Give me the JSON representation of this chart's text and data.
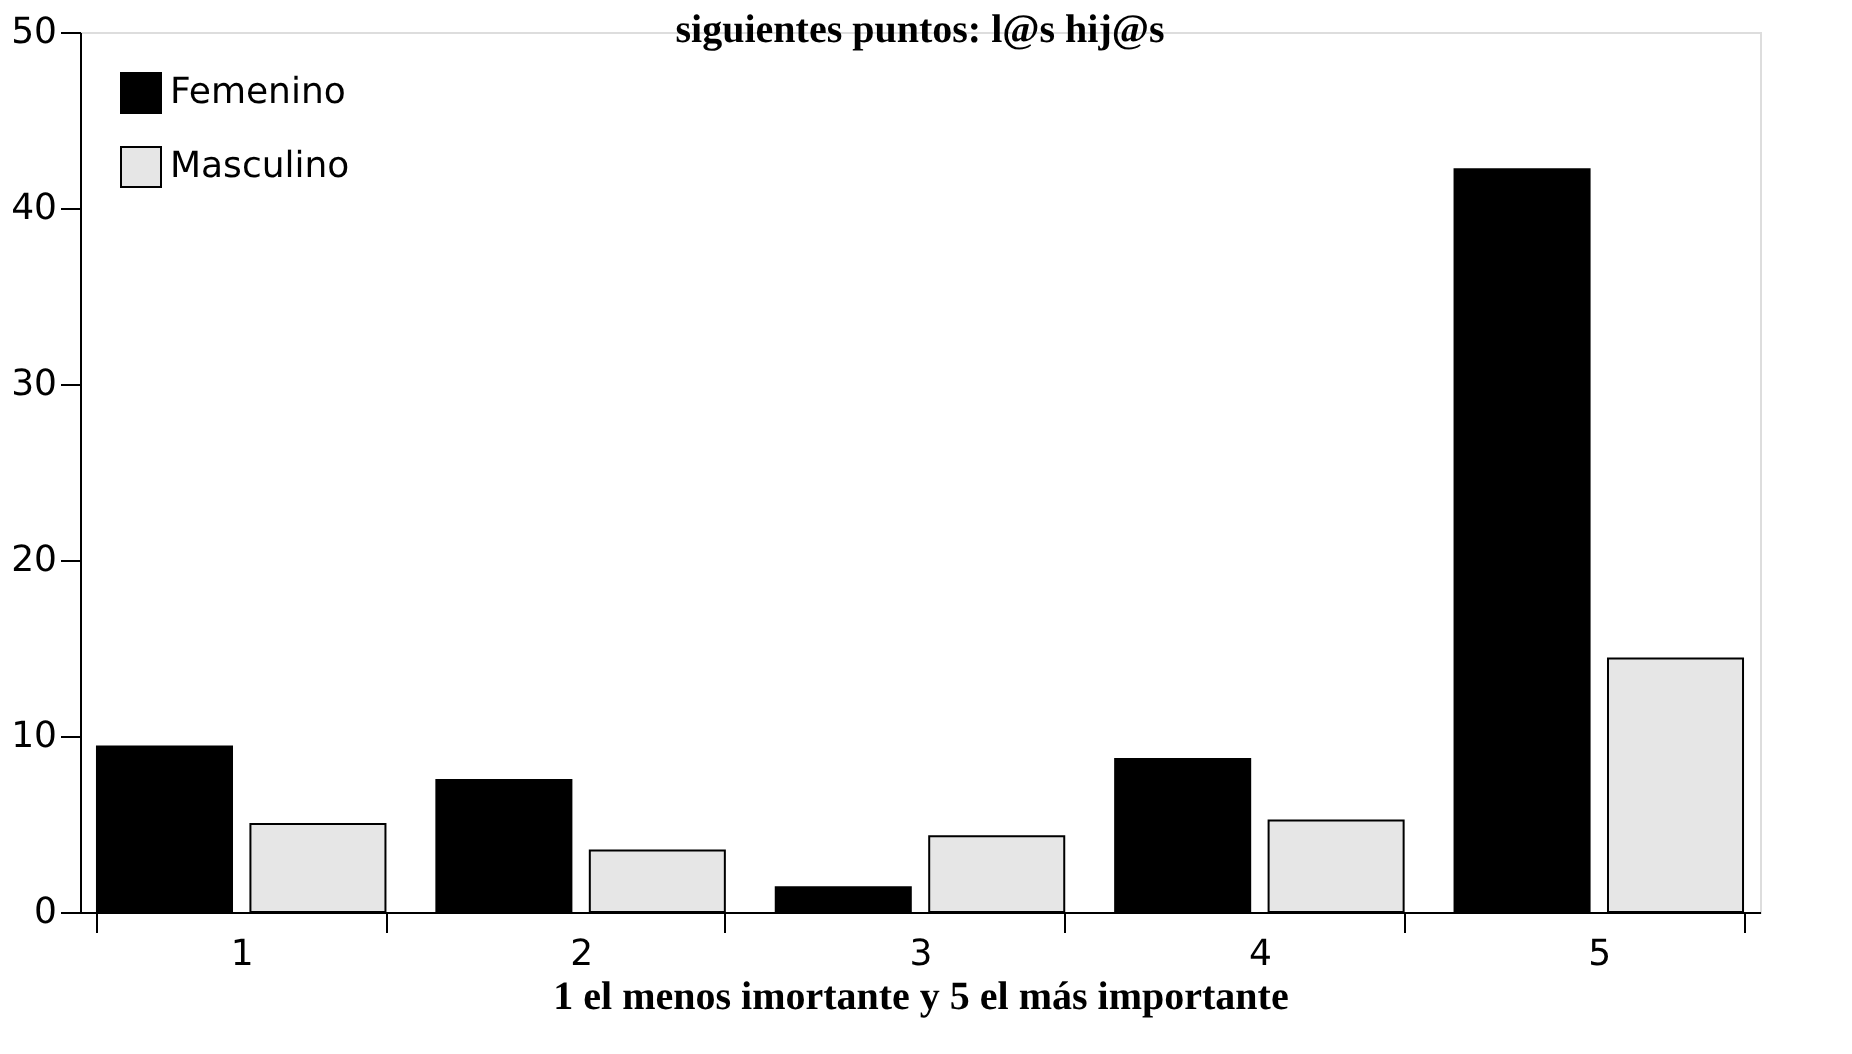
{
  "chart_data": {
    "type": "bar",
    "title": "siguientes puntos: l@s hij@s",
    "xlabel": "1 el menos imortante y 5 el más importante",
    "categories": [
      "1",
      "2",
      "3",
      "4",
      "5"
    ],
    "series": [
      {
        "name": "Femenino",
        "color": "#000000",
        "values": [
          9.4,
          7.5,
          1.4,
          8.7,
          42.2
        ]
      },
      {
        "name": "Masculino",
        "color": "#e6e6e6",
        "values": [
          5.0,
          3.5,
          4.3,
          5.2,
          14.4
        ]
      }
    ],
    "ylim": [
      0,
      50
    ],
    "yticks": [
      0,
      10,
      20,
      30,
      40,
      50
    ],
    "grid": false,
    "legend": "top left"
  }
}
